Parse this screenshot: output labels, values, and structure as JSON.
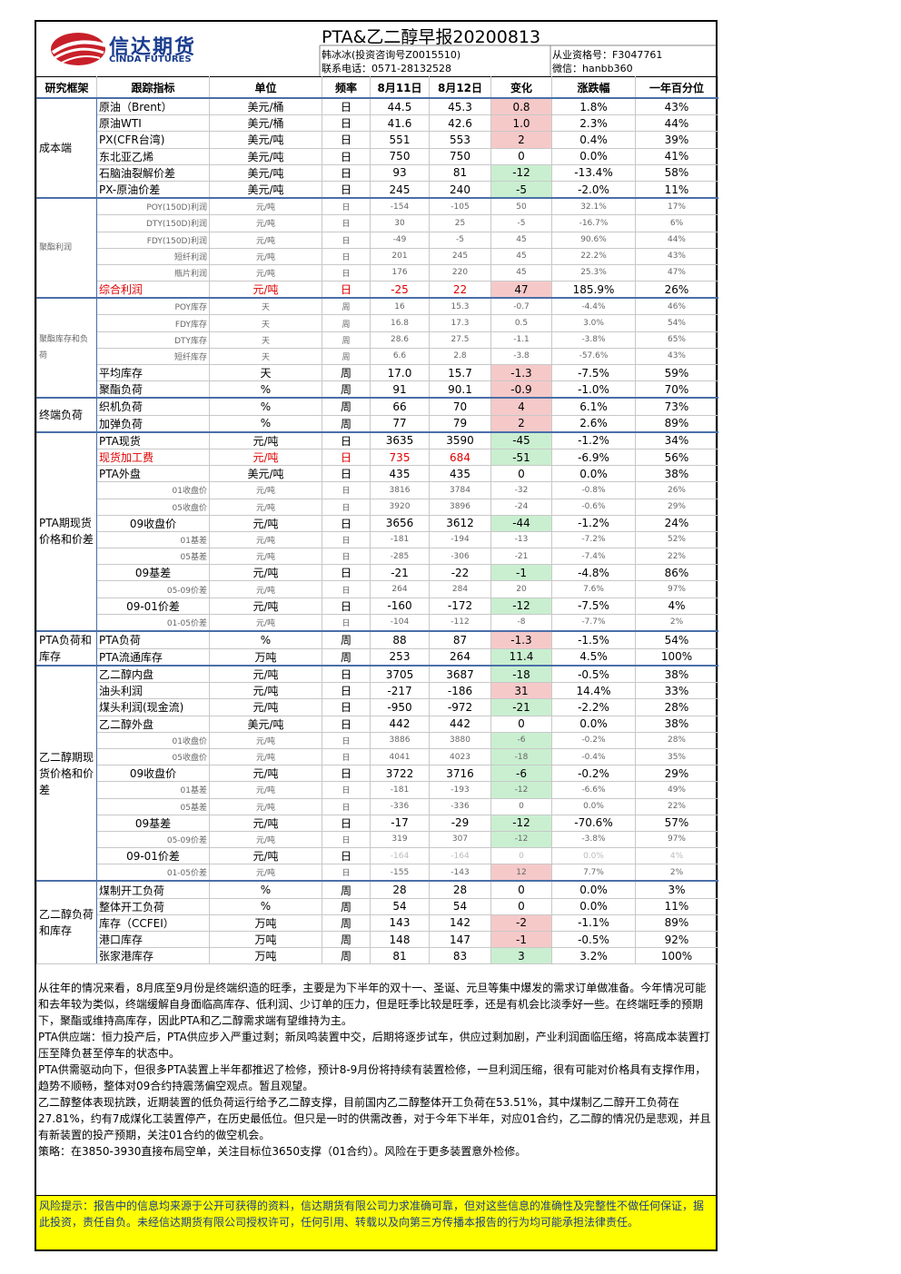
{
  "header": {
    "logo_cn": "信达期货",
    "logo_en": "CINDA FUTURES",
    "title": "PTA&乙二醇早报20200813",
    "analyst": "韩冰冰(投资咨询号Z0015510)",
    "phone": "联系电话：0571-28132528",
    "license": "从业资格号：F3047761",
    "wechat": "微信：hanbb360"
  },
  "table": {
    "headers": [
      "研究框架",
      "跟踪指标",
      "单位",
      "频率",
      "8月11日",
      "8月12日",
      "变化",
      "涨跌幅",
      "一年百分位"
    ],
    "sections": [
      {
        "name": "成本端",
        "rows": [
          {
            "cells": [
              "原油（Brent）",
              "美元/桶",
              "日",
              "44.5",
              "45.3",
              "0.8",
              "1.8%",
              "43%"
            ],
            "change_fill": "#f6c9c9"
          },
          {
            "cells": [
              "原油WTI",
              "美元/桶",
              "日",
              "41.6",
              "42.6",
              "1.0",
              "2.3%",
              "44%"
            ],
            "change_fill": "#f6c9c9"
          },
          {
            "cells": [
              "PX(CFR台湾)",
              "美元/吨",
              "日",
              "551",
              "553",
              "2",
              "0.4%",
              "39%"
            ],
            "change_fill": "#f6c9c9"
          },
          {
            "cells": [
              "东北亚乙烯",
              "美元/吨",
              "日",
              "750",
              "750",
              "0",
              "0.0%",
              "41%"
            ]
          },
          {
            "cells": [
              "石脑油裂解价差",
              "美元/吨",
              "日",
              "93",
              "81",
              "-12",
              "-13.4%",
              "58%"
            ],
            "change_fill": "#c9efd0"
          },
          {
            "cells": [
              "PX-原油价差",
              "美元/吨",
              "日",
              "245",
              "240",
              "-5",
              "-2.0%",
              "11%"
            ],
            "change_fill": "#c9efd0"
          }
        ]
      },
      {
        "name": "聚酯利润",
        "rows": [
          {
            "cells": [
              "POY(150D)利润",
              "元/吨",
              "日",
              "-154",
              "-105",
              "50",
              "32.1%",
              "17%"
            ],
            "style": "minor"
          },
          {
            "cells": [
              "DTY(150D)利润",
              "元/吨",
              "日",
              "30",
              "25",
              "-5",
              "-16.7%",
              "6%"
            ],
            "style": "minor"
          },
          {
            "cells": [
              "FDY(150D)利润",
              "元/吨",
              "日",
              "-49",
              "-5",
              "45",
              "90.6%",
              "44%"
            ],
            "style": "minor"
          },
          {
            "cells": [
              "短纤利润",
              "元/吨",
              "日",
              "201",
              "245",
              "45",
              "22.2%",
              "43%"
            ],
            "style": "minor"
          },
          {
            "cells": [
              "瓶片利润",
              "元/吨",
              "日",
              "176",
              "220",
              "45",
              "25.3%",
              "47%"
            ],
            "style": "minor"
          },
          {
            "cells": [
              "综合利润",
              "元/吨",
              "日",
              "-25",
              "22",
              "47",
              "185.9%",
              "26%"
            ],
            "style": "red",
            "change_fill": "#f6c9c9"
          }
        ]
      },
      {
        "name": "聚酯库存和负荷",
        "rows": [
          {
            "cells": [
              "POY库存",
              "天",
              "周",
              "16",
              "15.3",
              "-0.7",
              "-4.4%",
              "46%"
            ],
            "style": "minor"
          },
          {
            "cells": [
              "FDY库存",
              "天",
              "周",
              "16.8",
              "17.3",
              "0.5",
              "3.0%",
              "54%"
            ],
            "style": "minor"
          },
          {
            "cells": [
              "DTY库存",
              "天",
              "周",
              "28.6",
              "27.5",
              "-1.1",
              "-3.8%",
              "65%"
            ],
            "style": "minor"
          },
          {
            "cells": [
              "短纤库存",
              "天",
              "周",
              "6.6",
              "2.8",
              "-3.8",
              "-57.6%",
              "43%"
            ],
            "style": "minor"
          },
          {
            "cells": [
              "平均库存",
              "天",
              "周",
              "17.0",
              "15.7",
              "-1.3",
              "-7.5%",
              "59%"
            ],
            "change_fill": "#f6c9c9"
          },
          {
            "cells": [
              "聚酯负荷",
              "%",
              "周",
              "91",
              "90.1",
              "-0.9",
              "-1.0%",
              "70%"
            ],
            "change_fill": "#f6c9c9"
          }
        ]
      },
      {
        "name": "终端负荷",
        "rows": [
          {
            "cells": [
              "织机负荷",
              "%",
              "周",
              "66",
              "70",
              "4",
              "6.1%",
              "73%"
            ],
            "change_fill": "#f6c9c9"
          },
          {
            "cells": [
              "加弹负荷",
              "%",
              "周",
              "77",
              "79",
              "2",
              "2.6%",
              "89%"
            ],
            "change_fill": "#f6c9c9"
          }
        ]
      },
      {
        "name": "PTA期现货价格和价差",
        "rows": [
          {
            "cells": [
              "PTA现货",
              "元/吨",
              "日",
              "3635",
              "3590",
              "-45",
              "-1.2%",
              "34%"
            ],
            "change_fill": "#c9efd0"
          },
          {
            "cells": [
              "现货加工费",
              "元/吨",
              "日",
              "735",
              "684",
              "-51",
              "-6.9%",
              "56%"
            ],
            "style": "red",
            "change_fill": "#c9efd0"
          },
          {
            "cells": [
              "PTA外盘",
              "美元/吨",
              "日",
              "435",
              "435",
              "0",
              "0.0%",
              "38%"
            ]
          },
          {
            "cells": [
              "01收盘价",
              "元/吨",
              "日",
              "3816",
              "3784",
              "-32",
              "-0.8%",
              "26%"
            ],
            "style": "minor"
          },
          {
            "cells": [
              "05收盘价",
              "元/吨",
              "日",
              "3920",
              "3896",
              "-24",
              "-0.6%",
              "29%"
            ],
            "style": "minor"
          },
          {
            "cells": [
              "09收盘价",
              "元/吨",
              "日",
              "3656",
              "3612",
              "-44",
              "-1.2%",
              "24%"
            ],
            "style": "key",
            "change_fill": "#c9efd0"
          },
          {
            "cells": [
              "01基差",
              "元/吨",
              "日",
              "-181",
              "-194",
              "-13",
              "-7.2%",
              "52%"
            ],
            "style": "minor"
          },
          {
            "cells": [
              "05基差",
              "元/吨",
              "日",
              "-285",
              "-306",
              "-21",
              "-7.4%",
              "22%"
            ],
            "style": "minor"
          },
          {
            "cells": [
              "09基差",
              "元/吨",
              "日",
              "-21",
              "-22",
              "-1",
              "-4.8%",
              "86%"
            ],
            "style": "key",
            "change_fill": "#c9efd0"
          },
          {
            "cells": [
              "05-09价差",
              "元/吨",
              "日",
              "264",
              "284",
              "20",
              "7.6%",
              "97%"
            ],
            "style": "minor"
          },
          {
            "cells": [
              "09-01价差",
              "元/吨",
              "日",
              "-160",
              "-172",
              "-12",
              "-7.5%",
              "4%"
            ],
            "style": "key",
            "change_fill": "#c9efd0"
          },
          {
            "cells": [
              "01-05价差",
              "元/吨",
              "日",
              "-104",
              "-112",
              "-8",
              "-7.7%",
              "2%"
            ],
            "style": "minor"
          }
        ]
      },
      {
        "name": "PTA负荷和库存",
        "rows": [
          {
            "cells": [
              "PTA负荷",
              "%",
              "周",
              "88",
              "87",
              "-1.3",
              "-1.5%",
              "54%"
            ],
            "change_fill": "#f6c9c9"
          },
          {
            "cells": [
              "PTA流通库存",
              "万吨",
              "周",
              "253",
              "264",
              "11.4",
              "4.5%",
              "100%"
            ],
            "change_fill": "#c9efd0"
          }
        ]
      },
      {
        "name": "乙二醇期现货价格和价差",
        "rows": [
          {
            "cells": [
              "乙二醇内盘",
              "元/吨",
              "日",
              "3705",
              "3687",
              "-18",
              "-0.5%",
              "38%"
            ],
            "change_fill": "#c9efd0"
          },
          {
            "cells": [
              "油头利润",
              "元/吨",
              "日",
              "-217",
              "-186",
              "31",
              "14.4%",
              "33%"
            ],
            "change_fill": "#f6c9c9"
          },
          {
            "cells": [
              "煤头利润(现金流)",
              "元/吨",
              "日",
              "-950",
              "-972",
              "-21",
              "-2.2%",
              "28%"
            ],
            "change_fill": "#c9efd0"
          },
          {
            "cells": [
              "乙二醇外盘",
              "美元/吨",
              "日",
              "442",
              "442",
              "0",
              "0.0%",
              "38%"
            ]
          },
          {
            "cells": [
              "01收盘价",
              "元/吨",
              "日",
              "3886",
              "3880",
              "-6",
              "-0.2%",
              "28%"
            ],
            "style": "minor",
            "change_fill": "#c9efd0"
          },
          {
            "cells": [
              "05收盘价",
              "元/吨",
              "日",
              "4041",
              "4023",
              "-18",
              "-0.4%",
              "35%"
            ],
            "style": "minor",
            "change_fill": "#c9efd0"
          },
          {
            "cells": [
              "09收盘价",
              "元/吨",
              "日",
              "3722",
              "3716",
              "-6",
              "-0.2%",
              "29%"
            ],
            "style": "key",
            "change_fill": "#c9efd0"
          },
          {
            "cells": [
              "01基差",
              "元/吨",
              "日",
              "-181",
              "-193",
              "-12",
              "-6.6%",
              "49%"
            ],
            "style": "minor",
            "change_fill": "#c9efd0"
          },
          {
            "cells": [
              "05基差",
              "元/吨",
              "日",
              "-336",
              "-336",
              "0",
              "0.0%",
              "22%"
            ],
            "style": "minor"
          },
          {
            "cells": [
              "09基差",
              "元/吨",
              "日",
              "-17",
              "-29",
              "-12",
              "-70.6%",
              "57%"
            ],
            "style": "key",
            "change_fill": "#c9efd0"
          },
          {
            "cells": [
              "05-09价差",
              "元/吨",
              "日",
              "319",
              "307",
              "-12",
              "-3.8%",
              "97%"
            ],
            "style": "minor",
            "change_fill": "#c9efd0"
          },
          {
            "cells": [
              "09-01价差",
              "元/吨",
              "日",
              "-164",
              "-164",
              "0",
              "0.0%",
              "4%"
            ],
            "style": "key-faded"
          },
          {
            "cells": [
              "01-05价差",
              "元/吨",
              "日",
              "-155",
              "-143",
              "12",
              "7.7%",
              "2%"
            ],
            "style": "minor",
            "change_fill": "#f6c9c9"
          }
        ]
      },
      {
        "name": "乙二醇负荷和库存",
        "rows": [
          {
            "cells": [
              "煤制开工负荷",
              "%",
              "周",
              "28",
              "28",
              "0",
              "0.0%",
              "3%"
            ]
          },
          {
            "cells": [
              "整体开工负荷",
              "%",
              "周",
              "54",
              "54",
              "0",
              "0.0%",
              "11%"
            ]
          },
          {
            "cells": [
              "库存（CCFEI）",
              "万吨",
              "周",
              "143",
              "142",
              "-2",
              "-1.1%",
              "89%"
            ],
            "change_fill": "#f6c9c9"
          },
          {
            "cells": [
              "港口库存",
              "万吨",
              "周",
              "148",
              "147",
              "-1",
              "-0.5%",
              "92%"
            ],
            "change_fill": "#f6c9c9"
          },
          {
            "cells": [
              "张家港库存",
              "万吨",
              "周",
              "81",
              "83",
              "3",
              "3.2%",
              "100%"
            ],
            "change_fill": "#c9efd0"
          }
        ]
      }
    ]
  },
  "commentary": [
    "从往年的情况来看，8月底至9月份是终端织造的旺季，主要是为下半年的双十一、圣诞、元旦等集中爆发的需求订单做准备。今年情况可能和去年较为类似，终端缓解自身面临高库存、低利润、少订单的压力，但是旺季比较是旺季，还是有机会比淡季好一些。在终端旺季的预期下，聚酯或维持高库存，因此PTA和乙二醇需求端有望维持为主。",
    "PTA供应端：恒力投产后，PTA供应步入严重过剩；新凤鸣装置中交，后期将逐步试车，供应过剩加剧，产业利润面临压缩，将高成本装置打压至降负甚至停车的状态中。",
    "PTA供需驱动向下，但很多PTA装置上半年都推迟了检修，预计8-9月份将持续有装置检修，一旦利润压缩，很有可能对价格具有支撑作用，趋势不顺畅，整体对09合约持震荡偏空观点。暂且观望。",
    "乙二醇整体表现抗跌，近期装置的低负荷运行给予乙二醇支撑，目前国内乙二醇整体开工负荷在53.51%，其中煤制乙二醇开工负荷在27.81%，约有7成煤化工装置停产，在历史最低位。但只是一时的供需改善，对于今年下半年，对应01合约，乙二醇的情况仍是悲观，并且有新装置的投产预期，关注01合约的做空机会。",
    "策略：在3850-3930直接布局空单，关注目标位3650支撑（01合约）。风险在于更多装置意外检修。"
  ],
  "risk_note": "风险提示：报告中的信息均来源于公开可获得的资料，信达期货有限公司力求准确可靠，但对这些信息的准确性及完整性不做任何保证，据此投资，责任自负。未经信达期货有限公司授权许可，任何引用、转载以及向第三方传播本报告的行为均可能承担法律责任。"
}
